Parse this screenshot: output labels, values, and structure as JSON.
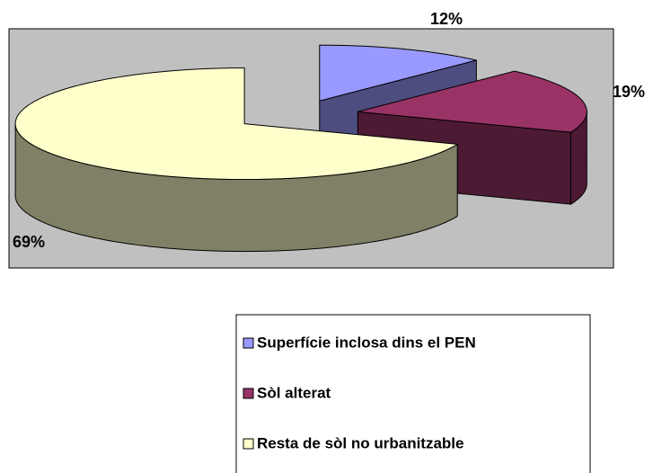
{
  "chart_data": {
    "type": "pie",
    "categories": [
      "Superfície inclosa dins el PEN",
      "Sòl alterat",
      "Resta de sòl no urbanitzable"
    ],
    "values": [
      12,
      19,
      69
    ],
    "value_labels": [
      "12%",
      "19%",
      "69%"
    ],
    "colors": [
      "#9999ff",
      "#993366",
      "#ffffcc"
    ],
    "legend": "bottom"
  }
}
